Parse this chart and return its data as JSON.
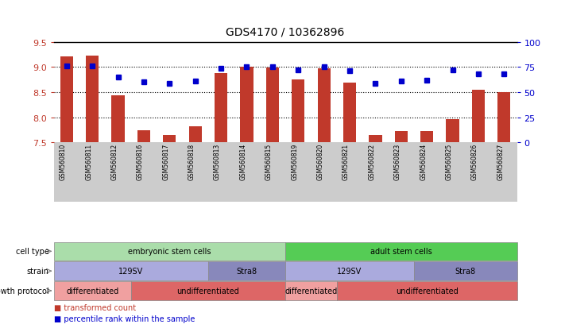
{
  "title": "GDS4170 / 10362896",
  "samples": [
    "GSM560810",
    "GSM560811",
    "GSM560812",
    "GSM560816",
    "GSM560817",
    "GSM560818",
    "GSM560813",
    "GSM560814",
    "GSM560815",
    "GSM560819",
    "GSM560820",
    "GSM560821",
    "GSM560822",
    "GSM560823",
    "GSM560824",
    "GSM560825",
    "GSM560826",
    "GSM560827"
  ],
  "bar_values": [
    9.21,
    9.22,
    8.43,
    7.74,
    7.64,
    7.82,
    8.88,
    9.0,
    8.99,
    8.76,
    8.98,
    8.69,
    7.64,
    7.72,
    7.72,
    7.96,
    8.54,
    8.5
  ],
  "dot_values": [
    76,
    76,
    65,
    60,
    59,
    61,
    74,
    75,
    75,
    72,
    75,
    71,
    59,
    61,
    62,
    72,
    68,
    68
  ],
  "ylim_left": [
    7.5,
    9.5
  ],
  "ylim_right": [
    0,
    100
  ],
  "bar_color": "#c0392b",
  "dot_color": "#0000cc",
  "yticks_left": [
    7.5,
    8.0,
    8.5,
    9.0,
    9.5
  ],
  "yticks_right": [
    0,
    25,
    50,
    75,
    100
  ],
  "dotted_lines": [
    9.0,
    8.5,
    8.0
  ],
  "cell_type_segments": [
    {
      "label": "embryonic stem cells",
      "start": 0,
      "end": 8,
      "color": "#aaddaa"
    },
    {
      "label": "adult stem cells",
      "start": 9,
      "end": 17,
      "color": "#55cc55"
    }
  ],
  "strain_segments": [
    {
      "label": "129SV",
      "start": 0,
      "end": 5,
      "color": "#aaaadd"
    },
    {
      "label": "Stra8",
      "start": 6,
      "end": 8,
      "color": "#8888bb"
    },
    {
      "label": "129SV",
      "start": 9,
      "end": 13,
      "color": "#aaaadd"
    },
    {
      "label": "Stra8",
      "start": 14,
      "end": 17,
      "color": "#8888bb"
    }
  ],
  "growth_segments": [
    {
      "label": "differentiated",
      "start": 0,
      "end": 2,
      "color": "#f0a0a0"
    },
    {
      "label": "undifferentiated",
      "start": 3,
      "end": 8,
      "color": "#dd6666"
    },
    {
      "label": "differentiated",
      "start": 9,
      "end": 10,
      "color": "#f0a0a0"
    },
    {
      "label": "undifferentiated",
      "start": 11,
      "end": 17,
      "color": "#dd6666"
    }
  ],
  "row_labels": [
    "cell type",
    "strain",
    "growth protocol"
  ]
}
